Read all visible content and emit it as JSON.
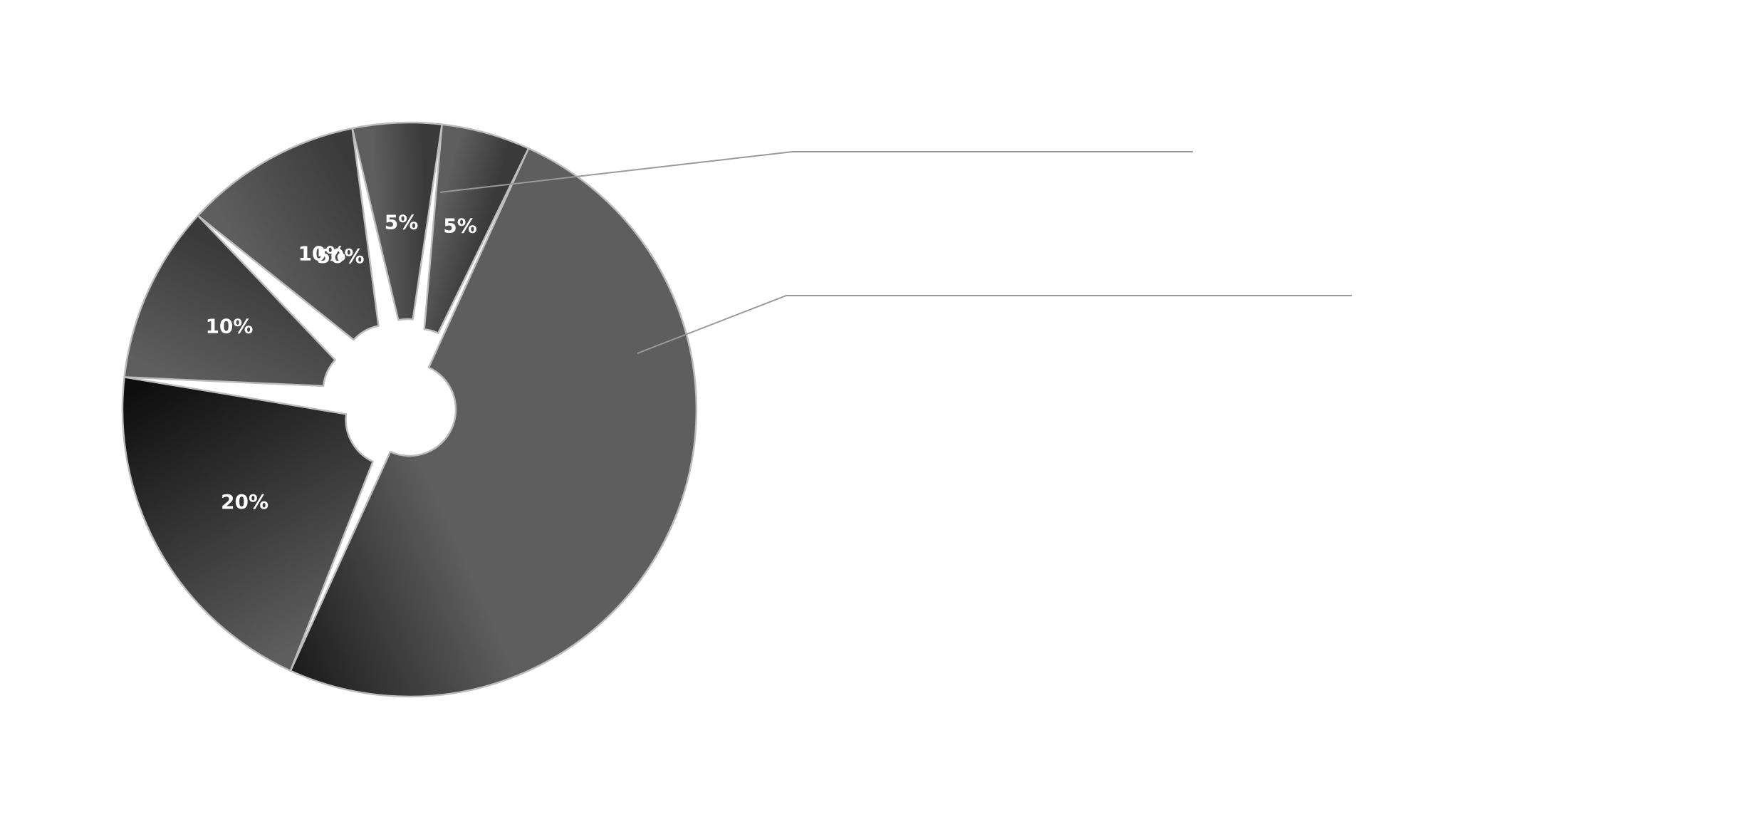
{
  "chart_data": {
    "type": "pie",
    "variant": "exploded-donut",
    "title": "",
    "slices": [
      {
        "value": 50,
        "label": "50%"
      },
      {
        "value": 20,
        "label": "20%"
      },
      {
        "value": 10,
        "label": "10%"
      },
      {
        "value": 10,
        "label": "10%"
      },
      {
        "value": 5,
        "label": "5%"
      },
      {
        "value": 5,
        "label": "5%"
      }
    ],
    "callouts": [
      {
        "slice_index": 0,
        "text": ""
      },
      {
        "slice_index": 1,
        "text": ""
      }
    ],
    "colors": {
      "dark": "#0e0e0e",
      "mid": "#3a3a3a",
      "light": "#5e5e5e",
      "separator": "#bdbdbd",
      "leader": "#9a9a9a",
      "label": "#ffffff"
    },
    "legend": "none"
  }
}
